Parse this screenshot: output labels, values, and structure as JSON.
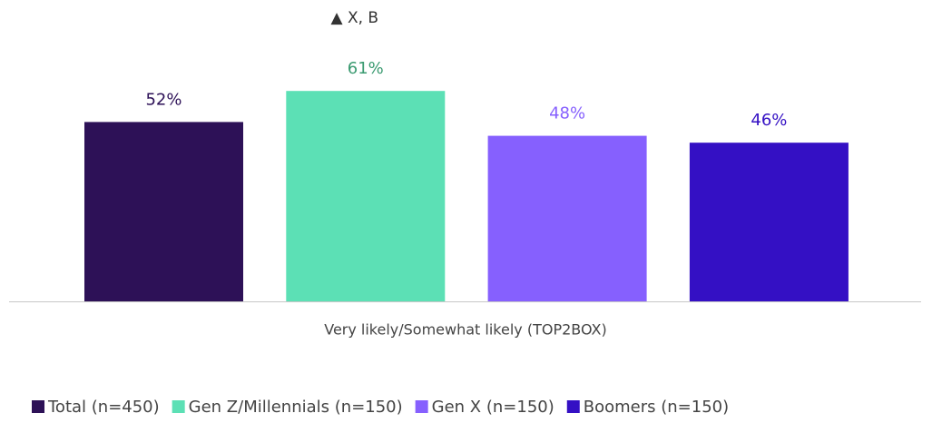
{
  "chart_data": {
    "type": "bar",
    "categories": [
      "Very likely/Somewhat likely (TOP2BOX)"
    ],
    "series": [
      {
        "name": "Total (n=450)",
        "color": "#2d1157",
        "label_color": "#2d1157",
        "values": [
          52
        ],
        "value_labels": [
          "52%"
        ]
      },
      {
        "name": "Gen Z/Millennials (n=150)",
        "color": "#5ce0b5",
        "label_color": "#3a9a70",
        "values": [
          61
        ],
        "value_labels": [
          "61%"
        ]
      },
      {
        "name": "Gen X (n=150)",
        "color": "#8660fe",
        "label_color": "#8660fe",
        "values": [
          48
        ],
        "value_labels": [
          "48%"
        ]
      },
      {
        "name": "Boomers (n=150)",
        "color": "#3410c4",
        "label_color": "#3410c4",
        "values": [
          46
        ],
        "value_labels": [
          "46%"
        ]
      }
    ],
    "annotations": [
      {
        "text": "▲ X, B",
        "series": 1
      }
    ],
    "legend": "bottom"
  }
}
